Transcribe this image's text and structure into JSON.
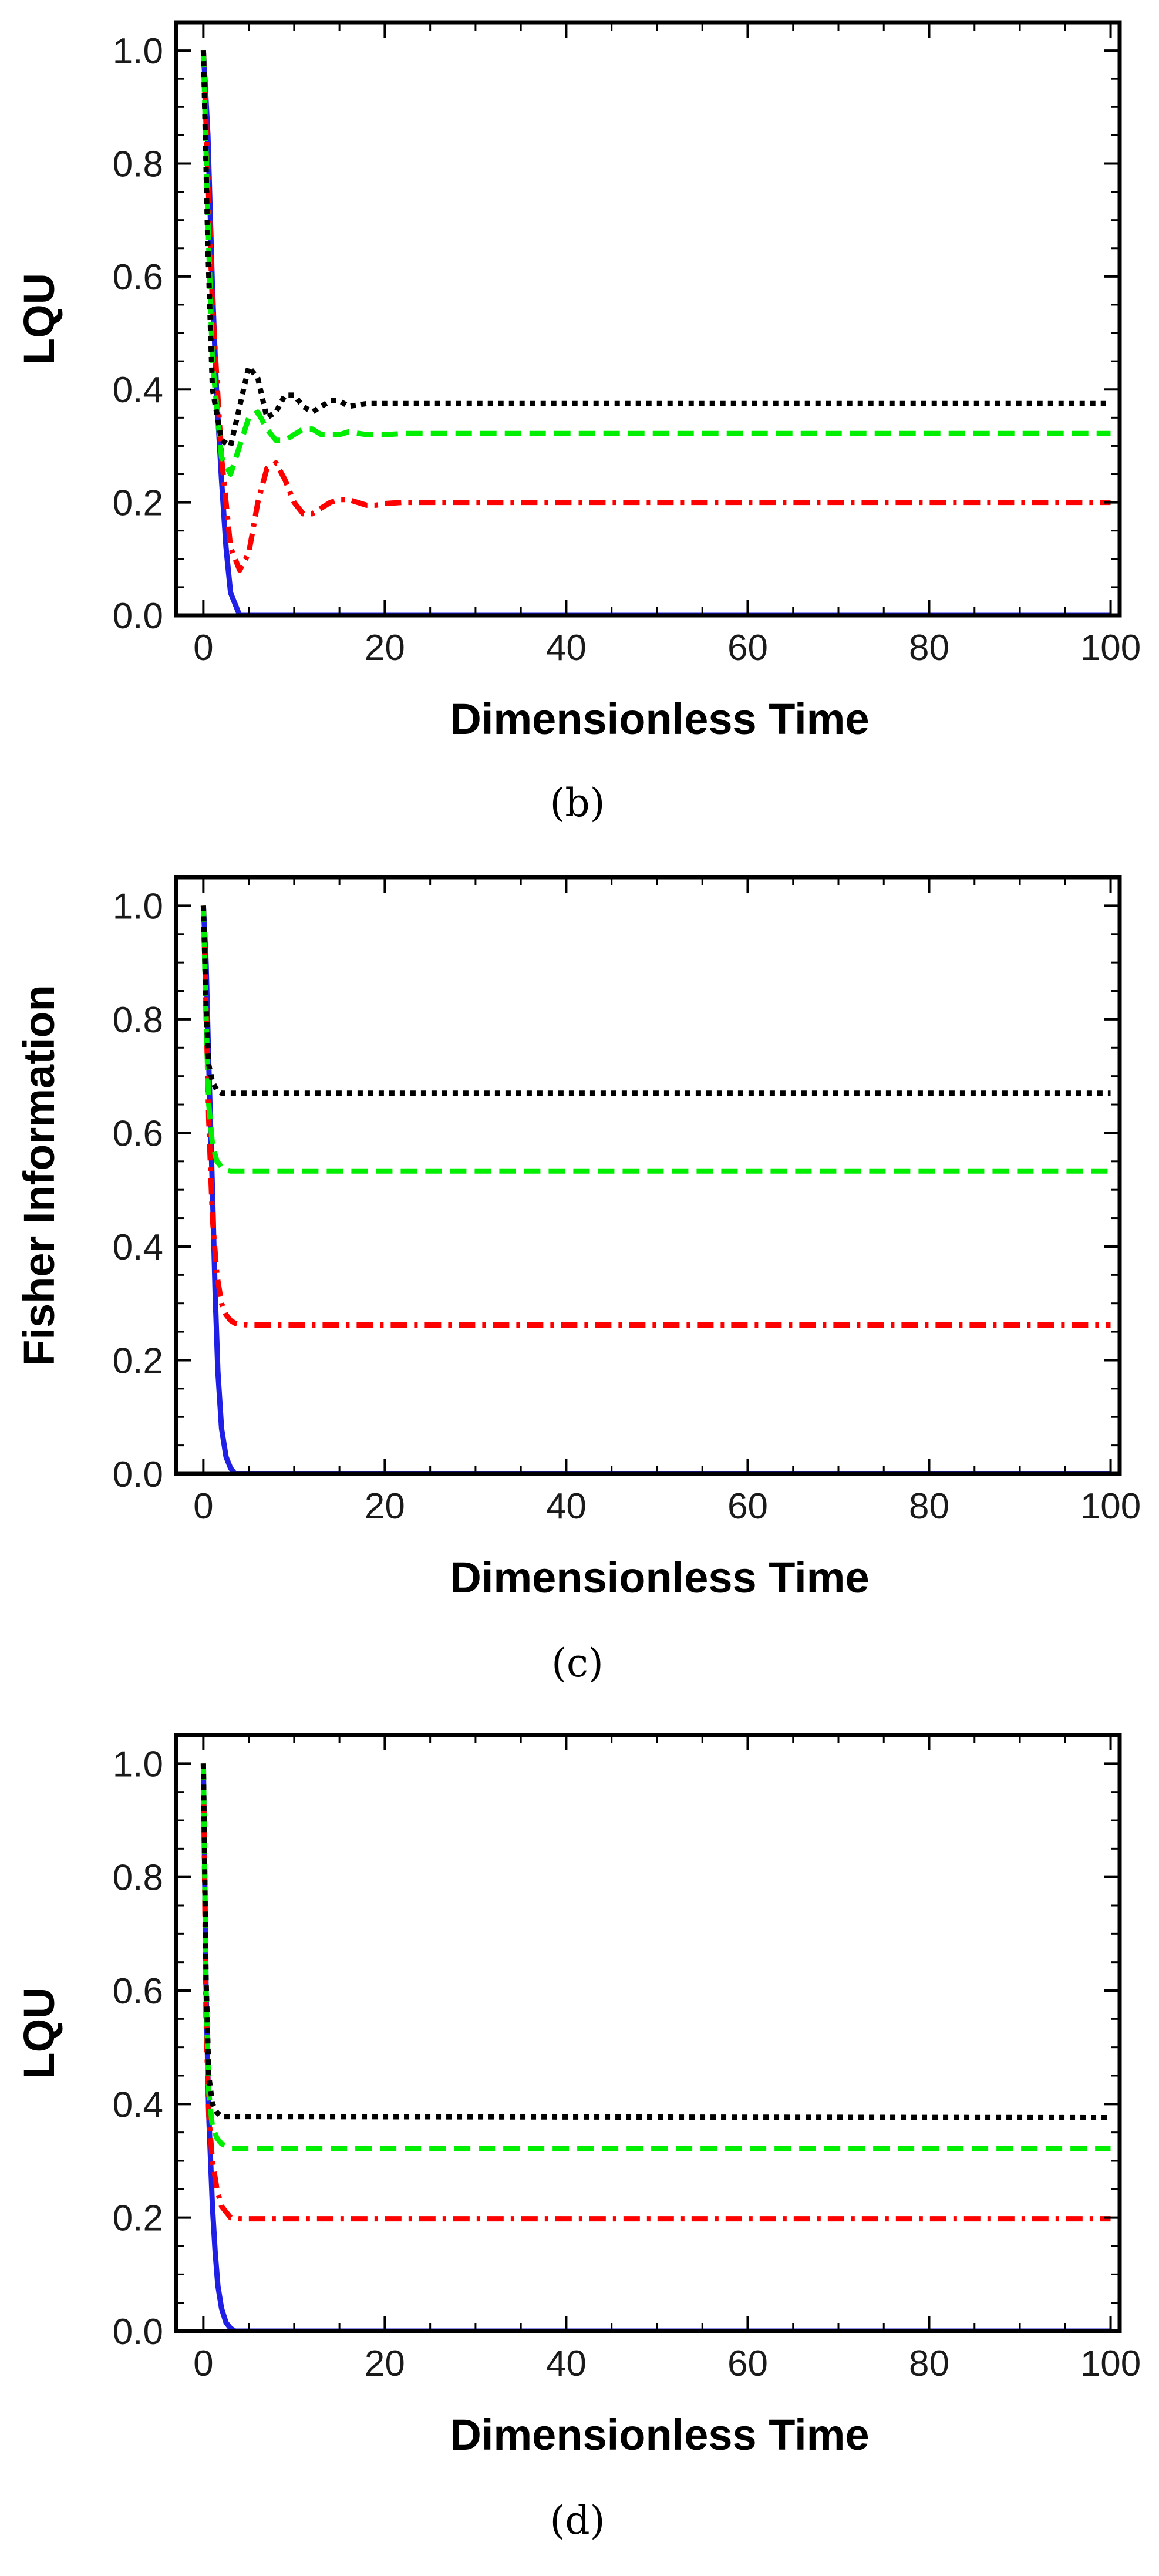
{
  "colors": {
    "blue": "#1f1fe6",
    "red": "#ff0000",
    "green": "#00ee00",
    "black": "#000000"
  },
  "chart_data": [
    {
      "type": "line",
      "caption": "(b)",
      "xlabel": "Dimensionless Time",
      "ylabel": "LQU",
      "xlim": [
        -3,
        101
      ],
      "ylim": [
        0,
        1.05
      ],
      "x_ticks": [
        "0",
        "20",
        "40",
        "60",
        "80",
        "100"
      ],
      "y_ticks": [
        "0.0",
        "0.2",
        "0.4",
        "0.6",
        "0.8",
        "1.0"
      ],
      "series": [
        {
          "color": "blue",
          "style": "solid",
          "x": [
            0,
            0.5,
            1,
            1.5,
            2,
            2.5,
            3,
            4,
            100
          ],
          "y": [
            1.0,
            0.85,
            0.58,
            0.38,
            0.24,
            0.12,
            0.04,
            0,
            0
          ]
        },
        {
          "color": "red",
          "style": "dashdot",
          "x": [
            0,
            0.5,
            1,
            2,
            3,
            4,
            5,
            6,
            7,
            8,
            9,
            10,
            11,
            12,
            13,
            14,
            15,
            16,
            17,
            18,
            19,
            20,
            22,
            25,
            100
          ],
          "y": [
            1.0,
            0.78,
            0.55,
            0.28,
            0.12,
            0.08,
            0.11,
            0.2,
            0.26,
            0.27,
            0.24,
            0.2,
            0.18,
            0.18,
            0.19,
            0.2,
            0.205,
            0.205,
            0.2,
            0.195,
            0.195,
            0.198,
            0.2,
            0.2,
            0.2
          ]
        },
        {
          "color": "green",
          "style": "dashed",
          "x": [
            0,
            0.5,
            1,
            2,
            3,
            4,
            5,
            6,
            7,
            8,
            9,
            10,
            11,
            12,
            13,
            14,
            15,
            16,
            18,
            20,
            22,
            100
          ],
          "y": [
            1.0,
            0.7,
            0.45,
            0.28,
            0.25,
            0.3,
            0.35,
            0.36,
            0.33,
            0.31,
            0.31,
            0.32,
            0.33,
            0.33,
            0.32,
            0.32,
            0.32,
            0.325,
            0.32,
            0.32,
            0.322,
            0.322
          ]
        },
        {
          "color": "black",
          "style": "dotted",
          "x": [
            0,
            0.5,
            1,
            2,
            3,
            4,
            5,
            6,
            7,
            8,
            9,
            10,
            11,
            12,
            13,
            14,
            15,
            16,
            18,
            20,
            22,
            100
          ],
          "y": [
            1.0,
            0.65,
            0.4,
            0.31,
            0.3,
            0.37,
            0.44,
            0.42,
            0.35,
            0.36,
            0.39,
            0.39,
            0.37,
            0.36,
            0.37,
            0.38,
            0.38,
            0.37,
            0.375,
            0.375,
            0.375,
            0.375
          ]
        }
      ]
    },
    {
      "type": "line",
      "caption": "(c)",
      "xlabel": "Dimensionless Time",
      "ylabel": "Fisher Information",
      "xlim": [
        -3,
        101
      ],
      "ylim": [
        0,
        1.05
      ],
      "x_ticks": [
        "0",
        "20",
        "40",
        "60",
        "80",
        "100"
      ],
      "y_ticks": [
        "0.0",
        "0.2",
        "0.4",
        "0.6",
        "0.8",
        "1.0"
      ],
      "series": [
        {
          "color": "blue",
          "style": "solid",
          "x": [
            0,
            0.3,
            0.6,
            1,
            1.3,
            1.6,
            2,
            2.5,
            3,
            3.5,
            100
          ],
          "y": [
            1.0,
            0.9,
            0.72,
            0.5,
            0.32,
            0.18,
            0.08,
            0.03,
            0.01,
            0,
            0
          ]
        },
        {
          "color": "red",
          "style": "dashdot",
          "x": [
            0,
            0.3,
            0.6,
            1,
            1.5,
            2,
            2.5,
            3,
            3.5,
            4,
            5,
            100
          ],
          "y": [
            1.0,
            0.82,
            0.62,
            0.45,
            0.35,
            0.3,
            0.28,
            0.27,
            0.265,
            0.263,
            0.262,
            0.262
          ]
        },
        {
          "color": "green",
          "style": "dashed",
          "x": [
            0,
            0.3,
            0.6,
            1,
            1.5,
            2,
            2.5,
            3,
            100
          ],
          "y": [
            1.0,
            0.8,
            0.65,
            0.58,
            0.55,
            0.54,
            0.535,
            0.533,
            0.533
          ]
        },
        {
          "color": "black",
          "style": "dotted",
          "x": [
            0,
            0.3,
            0.6,
            1,
            1.5,
            2,
            100
          ],
          "y": [
            1.0,
            0.82,
            0.72,
            0.69,
            0.675,
            0.67,
            0.67
          ]
        }
      ]
    },
    {
      "type": "line",
      "caption": "(d)",
      "xlabel": "Dimensionless Time",
      "ylabel": "LQU",
      "xlim": [
        -3,
        101
      ],
      "ylim": [
        0,
        1.05
      ],
      "x_ticks": [
        "0",
        "20",
        "40",
        "60",
        "80",
        "100"
      ],
      "y_ticks": [
        "0.0",
        "0.2",
        "0.4",
        "0.6",
        "0.8",
        "1.0"
      ],
      "series": [
        {
          "color": "blue",
          "style": "solid",
          "x": [
            0,
            0.3,
            0.6,
            1,
            1.3,
            1.6,
            2,
            2.5,
            3,
            3.5,
            100
          ],
          "y": [
            1.0,
            0.6,
            0.38,
            0.22,
            0.14,
            0.08,
            0.04,
            0.015,
            0.005,
            0,
            0
          ]
        },
        {
          "color": "red",
          "style": "dashdot",
          "x": [
            0,
            0.3,
            0.6,
            1,
            1.5,
            2,
            2.5,
            3,
            4,
            100
          ],
          "y": [
            1.0,
            0.55,
            0.38,
            0.3,
            0.25,
            0.22,
            0.21,
            0.2,
            0.198,
            0.198
          ]
        },
        {
          "color": "green",
          "style": "dashed",
          "x": [
            0,
            0.3,
            0.6,
            1,
            1.5,
            2,
            3,
            100
          ],
          "y": [
            1.0,
            0.6,
            0.42,
            0.36,
            0.34,
            0.33,
            0.322,
            0.322
          ]
        },
        {
          "color": "black",
          "style": "dotted",
          "x": [
            0,
            0.3,
            0.6,
            1,
            1.5,
            2,
            100
          ],
          "y": [
            1.0,
            0.62,
            0.45,
            0.4,
            0.385,
            0.378,
            0.376
          ]
        }
      ]
    }
  ]
}
